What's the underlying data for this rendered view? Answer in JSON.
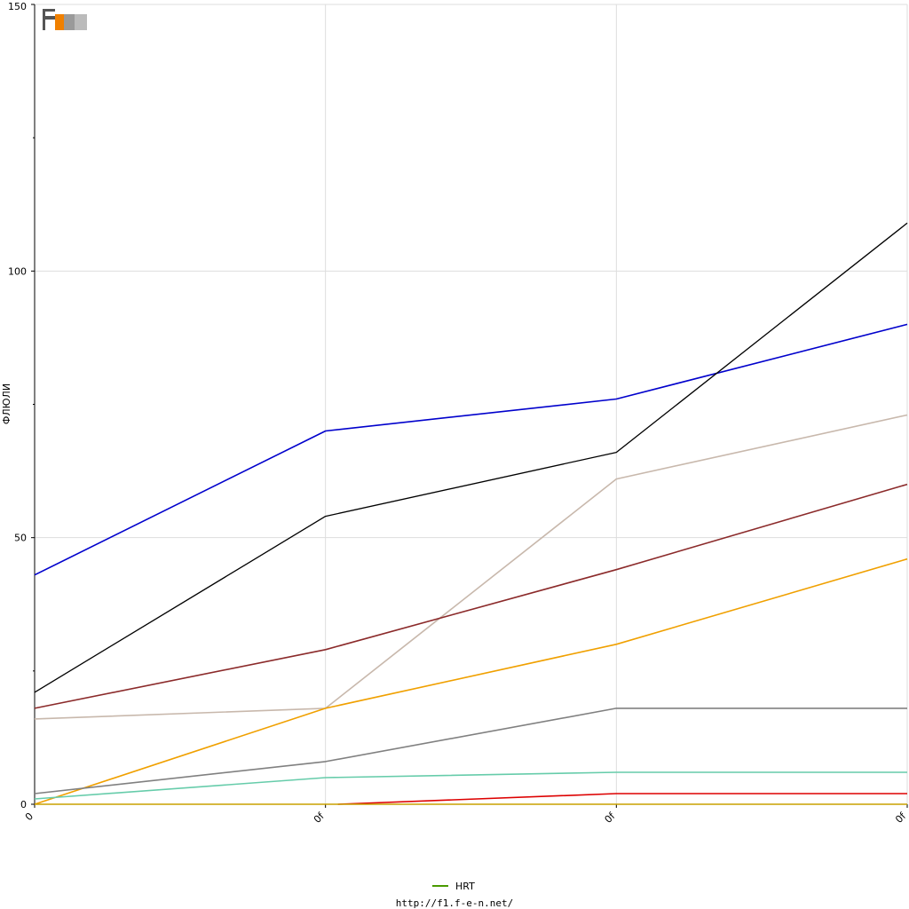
{
  "chart_data": {
    "type": "line",
    "title": "",
    "xlabel": "",
    "ylabel": "ФЛЮЛИ",
    "categories": [
      "0",
      "0f",
      "0f",
      "0f"
    ],
    "ylim": [
      0,
      150
    ],
    "yticks": [
      0,
      50,
      100,
      150
    ],
    "grid": true,
    "legend_position": "bottom",
    "legend": [
      {
        "label": "HRT",
        "color": "#4a9a00"
      }
    ],
    "series": [
      {
        "color": "#0000cc",
        "values": [
          43,
          70,
          76,
          90
        ]
      },
      {
        "color": "#000000",
        "values": [
          21,
          54,
          66,
          109
        ]
      },
      {
        "color": "#c8b8ac",
        "values": [
          16,
          18,
          61,
          73
        ]
      },
      {
        "color": "#8b2a2a",
        "values": [
          18,
          29,
          44,
          60
        ]
      },
      {
        "color": "#f0a000",
        "values": [
          0,
          18,
          30,
          46
        ]
      },
      {
        "color": "#808080",
        "values": [
          2,
          8,
          18,
          18
        ]
      },
      {
        "color": "#66ccaa",
        "values": [
          1,
          5,
          6,
          6
        ]
      },
      {
        "color": "#dd0000",
        "values": [
          null,
          0,
          2,
          2
        ]
      },
      {
        "color": "#c8a000",
        "values": [
          0,
          0,
          0,
          0
        ]
      }
    ]
  },
  "logo": {
    "text": "F1EN",
    "colors": [
      "#555555",
      "#f08000"
    ]
  },
  "source_url": "http://f1.f-e-n.net/"
}
